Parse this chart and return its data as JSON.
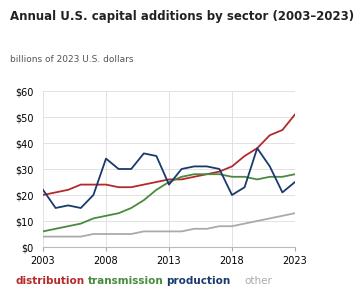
{
  "title": "Annual U.S. capital additions by sector (2003–2023)",
  "ylabel": "billions of 2023 U.S. dollars",
  "years": [
    2003,
    2004,
    2005,
    2006,
    2007,
    2008,
    2009,
    2010,
    2011,
    2012,
    2013,
    2014,
    2015,
    2016,
    2017,
    2018,
    2019,
    2020,
    2021,
    2022,
    2023
  ],
  "distribution": [
    20,
    21,
    22,
    24,
    24,
    24,
    23,
    23,
    24,
    25,
    26,
    26,
    27,
    28,
    29,
    31,
    35,
    38,
    43,
    45,
    51
  ],
  "transmission": [
    6,
    7,
    8,
    9,
    11,
    12,
    13,
    15,
    18,
    22,
    25,
    27,
    28,
    28,
    28,
    27,
    27,
    26,
    27,
    27,
    28
  ],
  "production": [
    22,
    15,
    16,
    15,
    20,
    34,
    30,
    30,
    36,
    35,
    24,
    30,
    31,
    31,
    30,
    20,
    23,
    38,
    31,
    21,
    25
  ],
  "other": [
    4,
    4,
    4,
    4,
    5,
    5,
    5,
    5,
    6,
    6,
    6,
    6,
    7,
    7,
    8,
    8,
    9,
    10,
    11,
    12,
    13
  ],
  "distribution_color": "#b5292a",
  "transmission_color": "#4a8a3f",
  "production_color": "#1a3a6e",
  "other_color": "#aaaaaa",
  "ylim": [
    0,
    60
  ],
  "yticks": [
    0,
    10,
    20,
    30,
    40,
    50,
    60
  ],
  "background_color": "#ffffff",
  "grid_color": "#dddddd",
  "title_fontsize": 8.5,
  "sublabel_fontsize": 6.5,
  "tick_fontsize": 7,
  "legend_fontsize": 7.5
}
